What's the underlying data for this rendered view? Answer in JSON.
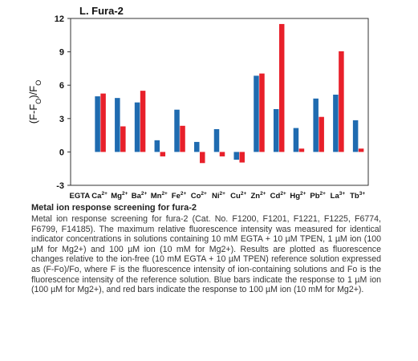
{
  "chart_data": {
    "type": "bar",
    "title": "L. Fura-2",
    "ylabel": "(F-FO)/FO",
    "ylim": [
      -3,
      12
    ],
    "yticks": [
      -3,
      0,
      3,
      6,
      9,
      12
    ],
    "categories": [
      {
        "base": "EGTA",
        "sup": ""
      },
      {
        "base": "Ca",
        "sup": "2+"
      },
      {
        "base": "Mg",
        "sup": "2+"
      },
      {
        "base": "Ba",
        "sup": "2+"
      },
      {
        "base": "Mn",
        "sup": "2+"
      },
      {
        "base": "Fe",
        "sup": "2+"
      },
      {
        "base": "Co",
        "sup": "2+"
      },
      {
        "base": "Ni",
        "sup": "2+"
      },
      {
        "base": "Cu",
        "sup": "2+"
      },
      {
        "base": "Zn",
        "sup": "2+"
      },
      {
        "base": "Cd",
        "sup": "2+"
      },
      {
        "base": "Hg",
        "sup": "2+"
      },
      {
        "base": "Pb",
        "sup": "2+"
      },
      {
        "base": "La",
        "sup": "3+"
      },
      {
        "base": "Tb",
        "sup": "3+"
      }
    ],
    "series": [
      {
        "color": "#1f6bb0",
        "values": [
          0,
          5.0,
          4.85,
          4.45,
          1.05,
          3.8,
          0.9,
          2.05,
          -0.7,
          6.85,
          3.85,
          2.15,
          4.8,
          5.15,
          2.85
        ]
      },
      {
        "color": "#e8202a",
        "values": [
          0,
          5.25,
          2.3,
          5.5,
          -0.4,
          2.35,
          -1.0,
          -0.4,
          -0.95,
          7.05,
          11.5,
          0.3,
          3.15,
          9.05,
          0.3
        ]
      }
    ]
  },
  "caption": {
    "title": "Metal ion response screening for fura-2",
    "body": "Metal ion response screening for fura-2 (Cat. No. F1200, F1201, F1221, F1225, F6774, F6799, F14185). The maximum relative fluorescence intensity was measured for identical indicator concentrations in solutions containing 10 mM EGTA + 10 µM TPEN, 1 µM ion (100 µM for Mg2+) and 100 µM ion (10 mM for Mg2+). Results are plotted as fluorescence changes relative to the ion-free (10 mM EGTA + 10 µM TPEN) reference solution expressed as (F-Fo)/Fo, where F is the fluorescence intensity of ion-containing solutions and Fo is the fluorescence intensity of the reference solution. Blue bars indicate the response to 1 µM ion (100 µM for Mg2+), and red bars indicate the response to 100 µM ion (10 mM for Mg2+)."
  }
}
